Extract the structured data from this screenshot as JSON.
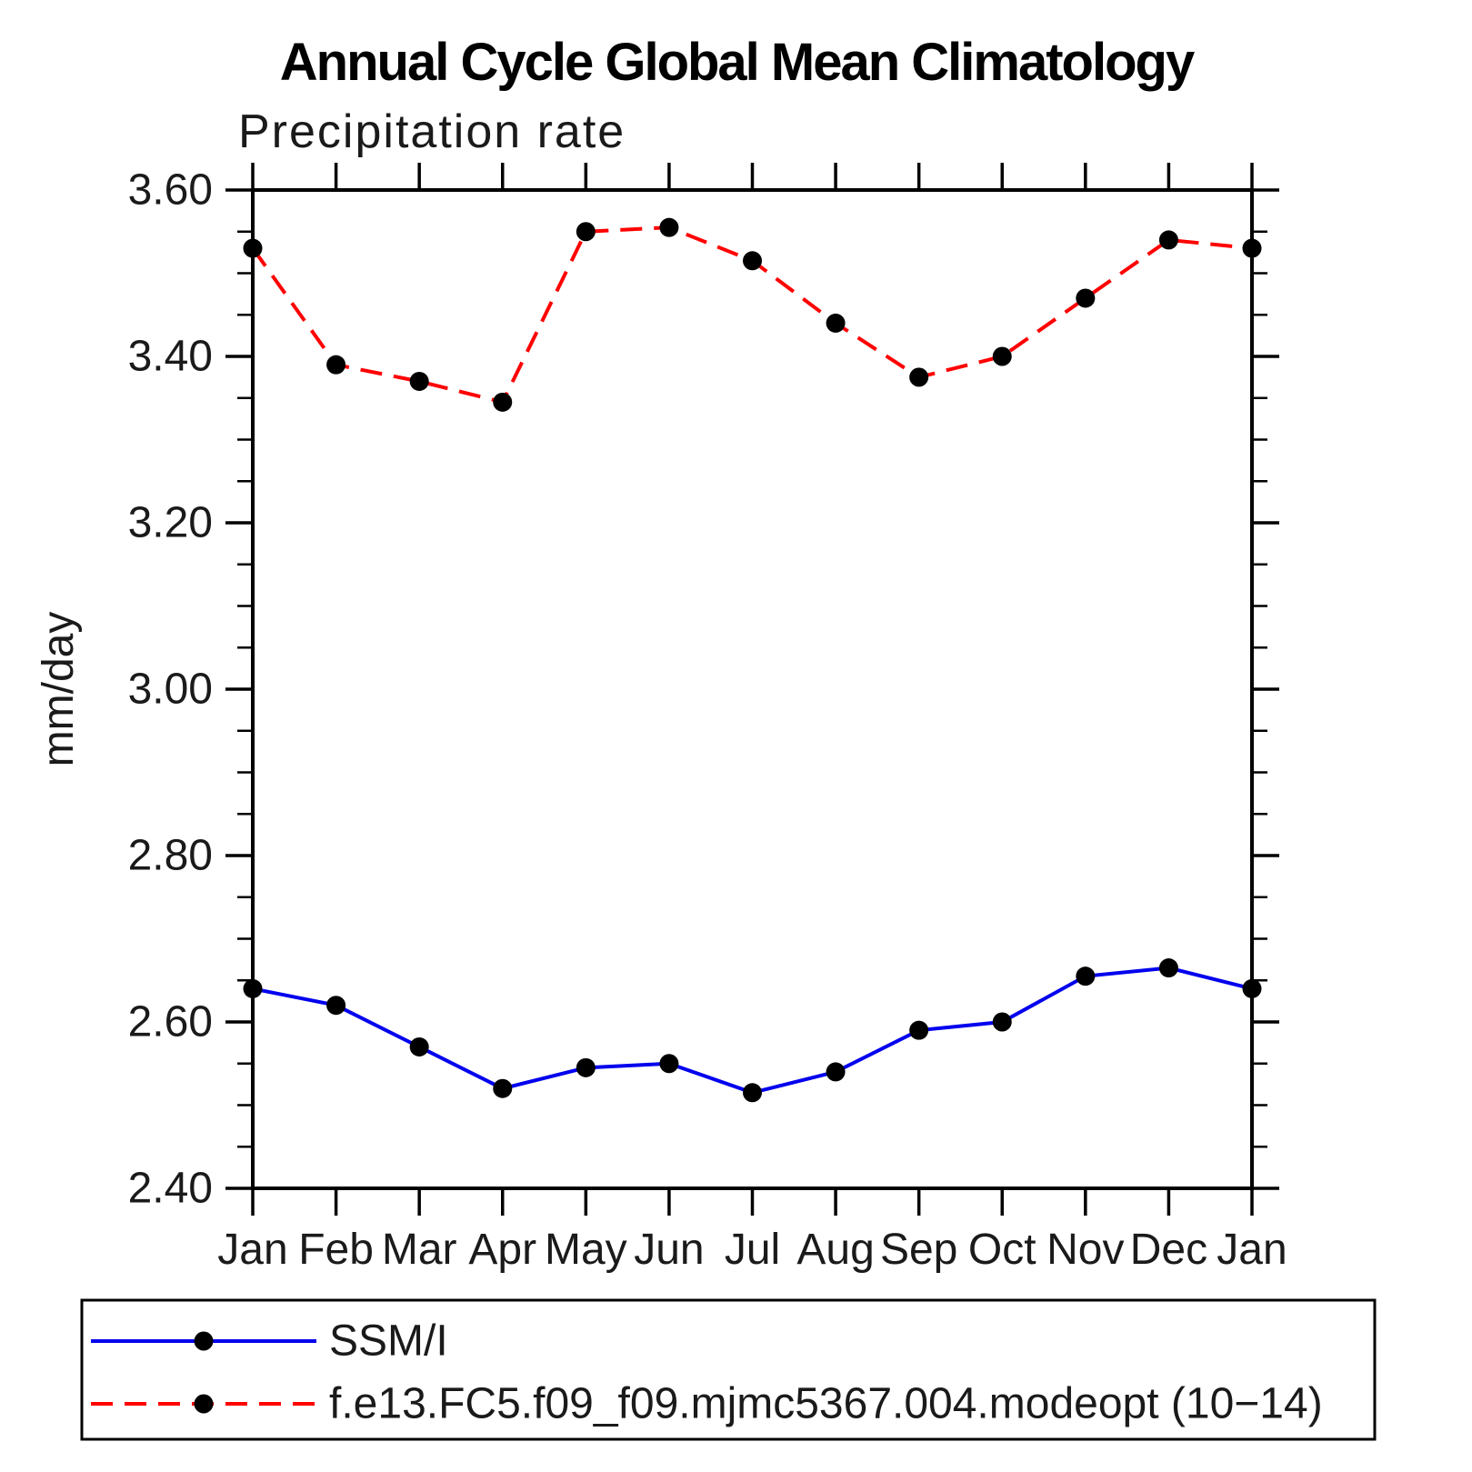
{
  "page": {
    "title": "Annual Cycle Global Mean Climatology",
    "subtitle": "Precipitation rate",
    "ylabel": "mm/day"
  },
  "colors": {
    "ssmi_line": "#0000ee",
    "model_line": "#ff0000",
    "marker": "#000000",
    "axis": "#000000",
    "background": "#ffffff"
  },
  "chart_data": {
    "type": "line",
    "title": "Annual Cycle Global Mean Climatology",
    "subtitle": "Precipitation rate",
    "xlabel": "",
    "ylabel": "mm/day",
    "categories": [
      "Jan",
      "Feb",
      "Mar",
      "Apr",
      "May",
      "Jun",
      "Jul",
      "Aug",
      "Sep",
      "Oct",
      "Nov",
      "Dec",
      "Jan"
    ],
    "ylim": [
      2.4,
      3.6
    ],
    "ytick_major_step": 0.2,
    "ytick_minor_step": 0.05,
    "ytick_major_labels": [
      "2.40",
      "2.60",
      "2.80",
      "3.00",
      "3.20",
      "3.40",
      "3.60"
    ],
    "grid": false,
    "legend_position": "bottom-box",
    "series": [
      {
        "name": "SSM/I",
        "color": "#0000ee",
        "line_style": "solid",
        "marker": "filled-circle",
        "values": [
          2.64,
          2.62,
          2.57,
          2.52,
          2.545,
          2.55,
          2.515,
          2.54,
          2.59,
          2.6,
          2.655,
          2.665,
          2.64
        ]
      },
      {
        "name": "f.e13.FC5.f09_f09.mjmc5367.004.modeopt (10−14)",
        "color": "#ff0000",
        "line_style": "dashed",
        "marker": "filled-circle",
        "values": [
          3.53,
          3.39,
          3.37,
          3.345,
          3.55,
          3.555,
          3.515,
          3.44,
          3.375,
          3.4,
          3.47,
          3.54,
          3.53
        ]
      }
    ]
  }
}
